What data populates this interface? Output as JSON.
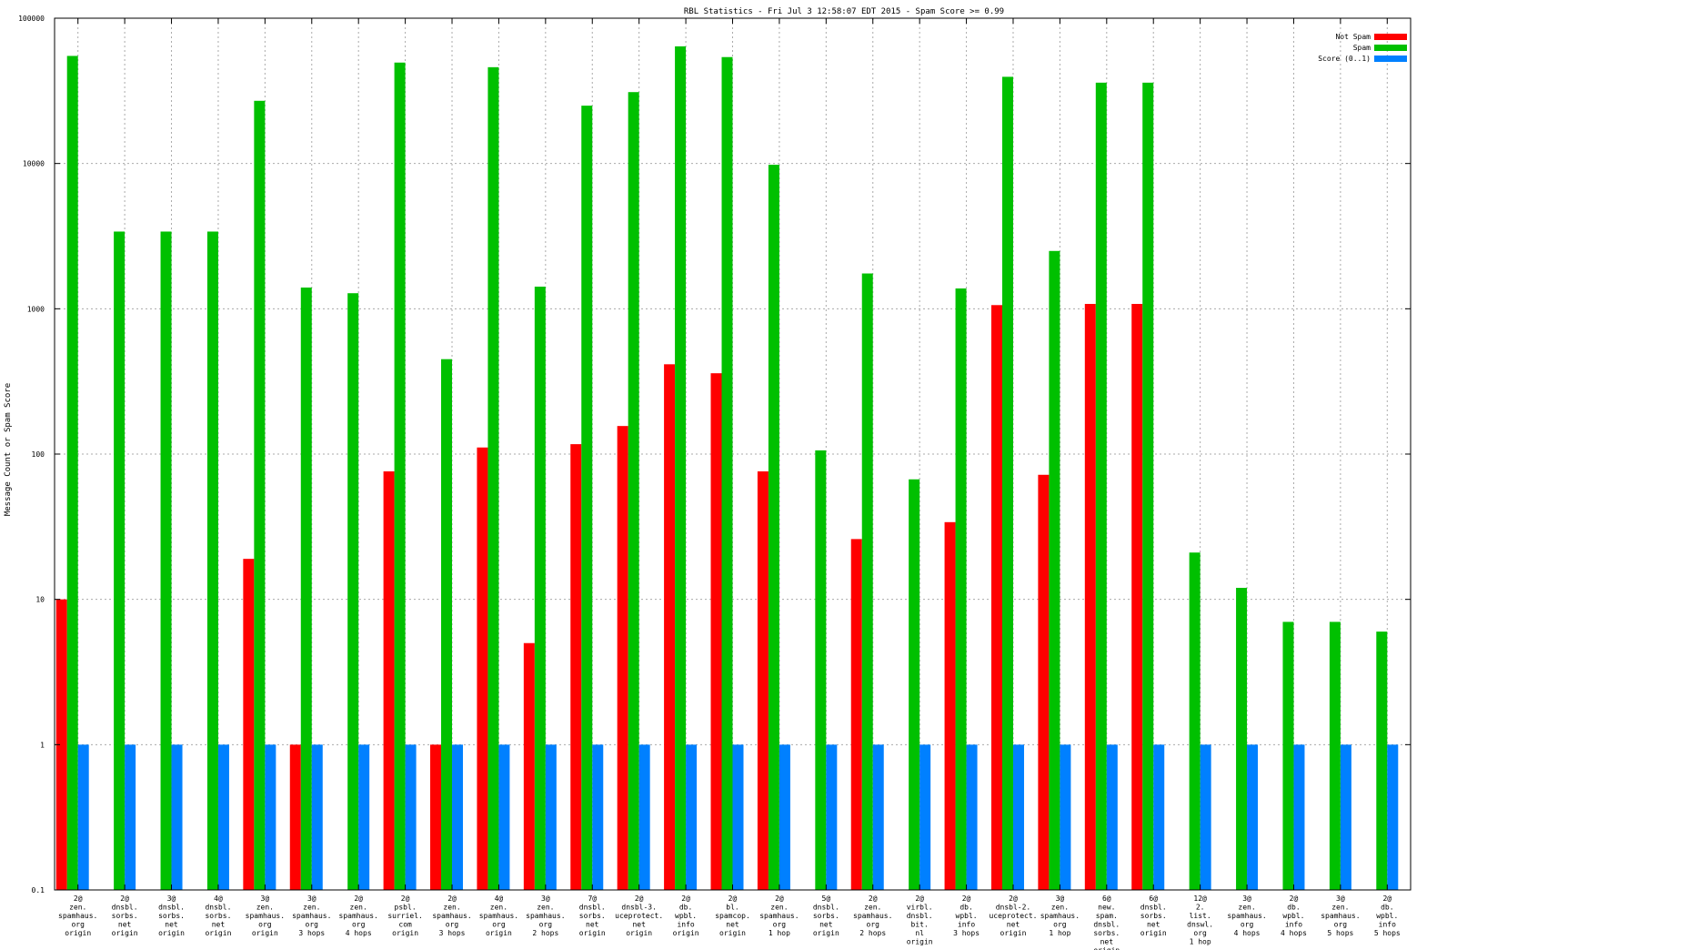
{
  "chart_data": {
    "type": "bar",
    "title": "RBL Statistics - Fri Jul  3 12:58:07 EDT 2015 - Spam Score >= 0.99",
    "ylabel": "Message Count or Spam Score",
    "xlabel": "",
    "y_scale": "log",
    "ylim": [
      0.1,
      100000
    ],
    "y_ticks": [
      "0.1",
      "1",
      "10",
      "100",
      "1000",
      "10000",
      "100000"
    ],
    "grid": true,
    "legend_position": "top-right",
    "categories": [
      [
        "2@",
        "zen.",
        "spamhaus.",
        "org",
        "origin"
      ],
      [
        "2@",
        "dnsbl.",
        "sorbs.",
        "net",
        "origin"
      ],
      [
        "3@",
        "dnsbl.",
        "sorbs.",
        "net",
        "origin"
      ],
      [
        "4@",
        "dnsbl.",
        "sorbs.",
        "net",
        "origin"
      ],
      [
        "3@",
        "zen.",
        "spamhaus.",
        "org",
        "origin"
      ],
      [
        "3@",
        "zen.",
        "spamhaus.",
        "org",
        "3 hops"
      ],
      [
        "2@",
        "zen.",
        "spamhaus.",
        "org",
        "4 hops"
      ],
      [
        "2@",
        "psbl.",
        "surriel.",
        "com",
        "origin"
      ],
      [
        "2@",
        "zen.",
        "spamhaus.",
        "org",
        "3 hops"
      ],
      [
        "4@",
        "zen.",
        "spamhaus.",
        "org",
        "origin"
      ],
      [
        "3@",
        "zen.",
        "spamhaus.",
        "org",
        "2 hops"
      ],
      [
        "7@",
        "dnsbl.",
        "sorbs.",
        "net",
        "origin"
      ],
      [
        "2@",
        "dnsbl-3.",
        "uceprotect.",
        "net",
        "origin"
      ],
      [
        "2@",
        "db.",
        "wpbl.",
        "info",
        "origin"
      ],
      [
        "2@",
        "bl.",
        "spamcop.",
        "net",
        "origin"
      ],
      [
        "2@",
        "zen.",
        "spamhaus.",
        "org",
        "1 hop"
      ],
      [
        "5@",
        "dnsbl.",
        "sorbs.",
        "net",
        "origin"
      ],
      [
        "2@",
        "zen.",
        "spamhaus.",
        "org",
        "2 hops"
      ],
      [
        "2@",
        "virbl.",
        "dnsbl.",
        "bit.",
        "nl",
        "origin"
      ],
      [
        "2@",
        "db.",
        "wpbl.",
        "info",
        "3 hops"
      ],
      [
        "2@",
        "dnsbl-2.",
        "uceprotect.",
        "net",
        "origin"
      ],
      [
        "3@",
        "zen.",
        "spamhaus.",
        "org",
        "1 hop"
      ],
      [
        "6@",
        "new.",
        "spam.",
        "dnsbl.",
        "sorbs.",
        "net",
        "origin"
      ],
      [
        "6@",
        "dnsbl.",
        "sorbs.",
        "net",
        "origin"
      ],
      [
        "12@",
        "2.",
        "list.",
        "dnswl.",
        "org",
        "1 hop"
      ],
      [
        "3@",
        "zen.",
        "spamhaus.",
        "org",
        "4 hops"
      ],
      [
        "2@",
        "db.",
        "wpbl.",
        "info",
        "4 hops"
      ],
      [
        "3@",
        "zen.",
        "spamhaus.",
        "org",
        "5 hops"
      ],
      [
        "2@",
        "db.",
        "wpbl.",
        "info",
        "5 hops"
      ]
    ],
    "series": [
      {
        "name": "Not Spam",
        "color": "#ff0000",
        "values": [
          10,
          null,
          null,
          null,
          19,
          1,
          null,
          76,
          1,
          111,
          5,
          117,
          156,
          415,
          360,
          76,
          null,
          26,
          null,
          34,
          1060,
          72,
          1080,
          1080,
          null,
          null,
          null,
          null,
          null
        ]
      },
      {
        "name": "Spam",
        "color": "#00c000",
        "values": [
          55000,
          3400,
          3400,
          3400,
          27000,
          1400,
          1280,
          49500,
          450,
          46000,
          1420,
          25000,
          31000,
          64000,
          54000,
          9800,
          106,
          1750,
          67,
          1380,
          39500,
          2500,
          36000,
          36000,
          21,
          12,
          7,
          7,
          6
        ]
      },
      {
        "name": "Score (0..1)",
        "color": "#0080ff",
        "values": [
          1,
          1,
          1,
          1,
          1,
          1,
          1,
          1,
          1,
          1,
          1,
          1,
          1,
          1,
          1,
          1,
          1,
          1,
          1,
          1,
          1,
          1,
          1,
          1,
          1,
          1,
          1,
          1,
          1
        ]
      }
    ]
  }
}
